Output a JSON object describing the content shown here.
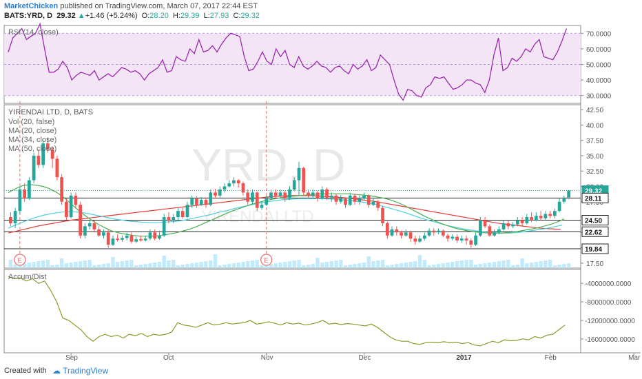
{
  "header": {
    "author": "MarketChicken",
    "published_text": "published on TradingView.com, March 07, 2017 22:44 EST",
    "symbol": "BATS:YRD, D",
    "last": "29.32",
    "change_arrow": "▲",
    "change": "+1.46 (+5.24%)",
    "o_label": "O:",
    "o": "28.20",
    "h_label": "H:",
    "h": "29.39",
    "l_label": "L:",
    "l": "27.93",
    "c_label": "C:",
    "c": "29.32"
  },
  "footer": {
    "created_with": "Created with",
    "brand": "TradingView"
  },
  "chart_data": {
    "type": "candlestick",
    "colors": {
      "up": "#26a69a",
      "down": "#ef5350",
      "rsi": "#9c27b0",
      "ma20": "#4caf50",
      "ma34": "#4dd0e1",
      "ma50": "#e53935",
      "accum": "#8a9a2a",
      "rsi_band": "#f3e5f5"
    },
    "watermark": {
      "symbol": "YRD, D",
      "name": "YIRENDAI LTD"
    },
    "rsi": {
      "label": "RSI (14, close)",
      "ticks": [
        "70.0000",
        "60.0000",
        "50.0000",
        "40.0000",
        "30.0000"
      ],
      "tick_values": [
        70,
        60,
        50,
        40,
        30
      ],
      "ylim": [
        25,
        75
      ],
      "band": [
        30,
        70
      ],
      "values": [
        58,
        67,
        70,
        73,
        66,
        68,
        70,
        76,
        60,
        45,
        45,
        47,
        52,
        48,
        40,
        43,
        45,
        44,
        43,
        46,
        40,
        42,
        44,
        42,
        45,
        48,
        47,
        45,
        46,
        44,
        40,
        44,
        46,
        48,
        53,
        45,
        46,
        55,
        53,
        52,
        60,
        57,
        66,
        58,
        59,
        62,
        58,
        63,
        67,
        70,
        69,
        68,
        55,
        46,
        47,
        52,
        58,
        52,
        50,
        60,
        55,
        59,
        50,
        48,
        55,
        49,
        47,
        49,
        52,
        49,
        48,
        45,
        48,
        49,
        46,
        44,
        50,
        47,
        49,
        53,
        46,
        48,
        56,
        53,
        50,
        40,
        31,
        27,
        34,
        33,
        30,
        29,
        35,
        37,
        42,
        41,
        42,
        38,
        34,
        35,
        37,
        40,
        40,
        38,
        37,
        32,
        40,
        56,
        67,
        46,
        48,
        54,
        52,
        55,
        60,
        58,
        63,
        66,
        55,
        54,
        53,
        58,
        65,
        73
      ]
    },
    "price": {
      "title": "YIRENDAI LTD, D, BATS",
      "legend": [
        "Vol (20, false)",
        "MA (20, close)",
        "MA (34, close)",
        "MA (50, close)"
      ],
      "ticks": [
        "42.50",
        "40.00",
        "37.50",
        "35.00",
        "32.50",
        "30.00",
        "27.50",
        "25.00",
        "22.50",
        "20.00",
        "17.50"
      ],
      "tick_values": [
        42.5,
        40,
        37.5,
        35,
        32.5,
        30,
        27.5,
        25,
        22.5,
        20,
        17.5
      ],
      "ylim": [
        16.7,
        43.3
      ],
      "hlines": [
        28.11,
        24.5,
        22.62,
        19.84
      ],
      "boxed_labels": [
        "29.32",
        "28.11",
        "24.50",
        "22.62",
        "19.84"
      ],
      "boxed_values": [
        29.32,
        28.11,
        24.5,
        22.62,
        19.84
      ],
      "events": [
        "E",
        "E"
      ],
      "event_index": [
        2,
        55
      ],
      "candles": [
        [
          25,
          24,
          25.8,
          23.5
        ],
        [
          24,
          26,
          26.5,
          23.2
        ],
        [
          26,
          29.5,
          30,
          25.5
        ],
        [
          29.5,
          28,
          30.5,
          27.5
        ],
        [
          28,
          31,
          31.5,
          27.8
        ],
        [
          31,
          35,
          35.5,
          30.5
        ],
        [
          35,
          33.5,
          36,
          33
        ],
        [
          33.5,
          37,
          37.5,
          33
        ],
        [
          37,
          36,
          38,
          35.5
        ],
        [
          36,
          34.5,
          36.5,
          33
        ],
        [
          34.5,
          31.5,
          35,
          31
        ],
        [
          31.5,
          27.5,
          32,
          27
        ],
        [
          27.5,
          25,
          28,
          24.5
        ],
        [
          25,
          28.5,
          29,
          24.8
        ],
        [
          28.5,
          27,
          29,
          26.5
        ],
        [
          27,
          22,
          27.5,
          21.5
        ],
        [
          22,
          23.5,
          24,
          21.5
        ],
        [
          23.5,
          24,
          24.5,
          23
        ],
        [
          24,
          23,
          24.5,
          22.5
        ],
        [
          23,
          22,
          23.5,
          21.8
        ],
        [
          22,
          22.5,
          23,
          21.5
        ],
        [
          22.5,
          20.5,
          23,
          20
        ],
        [
          20.5,
          21.5,
          22,
          20.3
        ],
        [
          21.5,
          21.3,
          22.2,
          21
        ],
        [
          21.3,
          21.6,
          22,
          21
        ],
        [
          21.6,
          22,
          22.5,
          21.2
        ],
        [
          22,
          21,
          22.5,
          20.7
        ],
        [
          21,
          21.4,
          21.8,
          20.8
        ],
        [
          21.4,
          21.2,
          22,
          21
        ],
        [
          21.2,
          21.5,
          22,
          21
        ],
        [
          21.5,
          22.5,
          23,
          21.2
        ],
        [
          22.5,
          21.5,
          23,
          21.2
        ],
        [
          21.5,
          22,
          22.8,
          21.3
        ],
        [
          22,
          25,
          25.5,
          21.8
        ],
        [
          25,
          24.5,
          25.8,
          24
        ],
        [
          24.5,
          25,
          25.5,
          24
        ],
        [
          25,
          26,
          26.5,
          24.5
        ],
        [
          26,
          25,
          26.5,
          24.7
        ],
        [
          25,
          27,
          27.5,
          24.8
        ],
        [
          27,
          28,
          28.5,
          26.5
        ],
        [
          28,
          27,
          28.4,
          26.5
        ],
        [
          27,
          27.8,
          28.3,
          26.8
        ],
        [
          27.8,
          27,
          28.2,
          26.5
        ],
        [
          27,
          29,
          29.5,
          26.8
        ],
        [
          29,
          28.5,
          29.6,
          28
        ],
        [
          28.5,
          29.5,
          30,
          28.2
        ],
        [
          29.5,
          30,
          30.5,
          29
        ],
        [
          30,
          30.5,
          31,
          29.8
        ],
        [
          30.5,
          31,
          31.5,
          30
        ],
        [
          31,
          30.5,
          31.2,
          29.8
        ],
        [
          30.5,
          29,
          30.8,
          28.5
        ],
        [
          29,
          27.5,
          29.5,
          27
        ],
        [
          27.5,
          29,
          29.5,
          27.2
        ],
        [
          29,
          26.5,
          29.2,
          26
        ],
        [
          26.5,
          27,
          27.5,
          26.2
        ],
        [
          27,
          28,
          28.5,
          26.8
        ],
        [
          28,
          29,
          29.5,
          27.8
        ],
        [
          29,
          28.5,
          29.5,
          28
        ],
        [
          28.5,
          29,
          29.5,
          28
        ],
        [
          29,
          28,
          29.3,
          27.5
        ],
        [
          28,
          29.5,
          30,
          27.8
        ],
        [
          29.5,
          31,
          31.5,
          29.2
        ],
        [
          31,
          33,
          34,
          28.5
        ],
        [
          33,
          29,
          33.2,
          28.5
        ],
        [
          29,
          28.5,
          29.5,
          28
        ],
        [
          28.5,
          29,
          29.5,
          28
        ],
        [
          29,
          28,
          29.3,
          27.5
        ],
        [
          28,
          29.5,
          30,
          27.8
        ],
        [
          29.5,
          28.2,
          29.8,
          27.8
        ],
        [
          28.2,
          28.5,
          29,
          27.5
        ],
        [
          28.5,
          27.5,
          28.8,
          27
        ],
        [
          27.5,
          28,
          28.6,
          27.2
        ],
        [
          28,
          27,
          28.3,
          26.5
        ],
        [
          27,
          28.5,
          29,
          26.8
        ],
        [
          28.5,
          27.5,
          28.8,
          27
        ],
        [
          27.5,
          28,
          28.5,
          27
        ],
        [
          28,
          28.5,
          29,
          27.8
        ],
        [
          28.5,
          27,
          28.7,
          26.5
        ],
        [
          27,
          27.5,
          28,
          26.8
        ],
        [
          27.5,
          26.5,
          27.8,
          26
        ],
        [
          26.5,
          24,
          26.8,
          23.5
        ],
        [
          24,
          22,
          24.3,
          21.5
        ],
        [
          22,
          23,
          23.5,
          21.8
        ],
        [
          23,
          22.5,
          23.5,
          22
        ],
        [
          22.5,
          22,
          22.8,
          21.5
        ],
        [
          22,
          22.5,
          23,
          21.8
        ],
        [
          22.5,
          21.5,
          22.8,
          21
        ],
        [
          21.5,
          21,
          22,
          20.5
        ],
        [
          21,
          21.5,
          22,
          20.8
        ],
        [
          21.5,
          22,
          22.5,
          21.2
        ],
        [
          22,
          22.8,
          23.2,
          21.8
        ],
        [
          22.8,
          22.5,
          23.2,
          22
        ],
        [
          22.5,
          22.8,
          23.2,
          22.2
        ],
        [
          22.8,
          22,
          23,
          21.7
        ],
        [
          22,
          21.5,
          22.3,
          21
        ],
        [
          21.5,
          21.8,
          22.2,
          21.2
        ],
        [
          21.8,
          21.2,
          22.2,
          20.8
        ],
        [
          21.2,
          21.5,
          22,
          20.8
        ],
        [
          21.5,
          21.2,
          22,
          20.5
        ],
        [
          21.2,
          20.5,
          21.5,
          20
        ],
        [
          20.5,
          22,
          22.5,
          20.3
        ],
        [
          22,
          24.5,
          25,
          21.8
        ],
        [
          24.5,
          23.5,
          25,
          23.2
        ],
        [
          23.5,
          22,
          23.8,
          21.8
        ],
        [
          22,
          22.5,
          23,
          21.8
        ],
        [
          22.5,
          23,
          23.5,
          22.2
        ],
        [
          23,
          24,
          24.5,
          22.8
        ],
        [
          24,
          23.5,
          24.4,
          23
        ],
        [
          23.5,
          23.8,
          24.2,
          23.2
        ],
        [
          23.8,
          24.5,
          25,
          23.5
        ],
        [
          24.5,
          24,
          25,
          23.6
        ],
        [
          24,
          25,
          25.5,
          23.8
        ],
        [
          25,
          24.5,
          25.8,
          24.2
        ],
        [
          24.5,
          25.2,
          25.8,
          24.3
        ],
        [
          25.2,
          24.8,
          26,
          24.5
        ],
        [
          24.8,
          25.5,
          26,
          24.5
        ],
        [
          25.5,
          25.2,
          26,
          24.8
        ],
        [
          25.2,
          26,
          26.4,
          24.8
        ],
        [
          26,
          27.5,
          28,
          25.8
        ],
        [
          27.5,
          28,
          28.5,
          27.2
        ],
        [
          28.2,
          29.32,
          29.39,
          27.93
        ]
      ],
      "ma20": [
        29,
        29.6,
        30.1,
        30.3,
        30.2,
        30,
        29.6,
        29,
        28.2,
        27.2,
        26.2,
        25.3,
        24.5,
        23.8,
        23.2,
        22.7,
        22.4,
        22.2,
        22,
        21.9,
        21.9,
        21.9,
        22,
        22.2,
        22.4,
        22.7,
        23,
        23.4,
        23.9,
        24.4,
        24.9,
        25.4,
        25.9,
        26.3,
        26.7,
        27.1,
        27.4,
        27.7,
        27.9,
        28.1,
        28.3,
        28.4,
        28.5,
        28.6,
        28.7,
        28.8,
        28.8,
        28.8,
        28.8,
        28.8,
        28.7,
        28.6,
        28.5,
        28.3,
        28.1,
        27.8,
        27.4,
        26.9,
        26.3,
        25.7,
        25.1,
        24.6,
        24.1,
        23.7,
        23.3,
        23,
        22.8,
        22.6,
        22.5,
        22.4,
        22.4,
        22.4,
        22.5,
        22.6,
        22.8,
        23,
        23.2,
        23.5,
        23.8,
        24.2,
        24.7
      ],
      "ma34": [
        23.2,
        23.8,
        24.4,
        24.9,
        25.3,
        25.6,
        25.8,
        25.9,
        25.8,
        25.6,
        25.3,
        25,
        24.7,
        24.5,
        24.3,
        24.2,
        24.1,
        24.1,
        24.2,
        24.3,
        24.5,
        24.8,
        25.1,
        25.4,
        25.8,
        26.1,
        26.5,
        26.8,
        27.1,
        27.4,
        27.6,
        27.8,
        27.9,
        28,
        28,
        28,
        28,
        27.9,
        27.8,
        27.7,
        27.5,
        27.3,
        27,
        26.6,
        26.2,
        25.8,
        25.3,
        24.8,
        24.4,
        24,
        23.6,
        23.3,
        23,
        22.8,
        22.6,
        22.5,
        22.4,
        22.4,
        22.5,
        22.7,
        22.9,
        23.1,
        23.4,
        23.7
      ],
      "ma50": [
        22.4,
        22.8,
        23.2,
        23.6,
        23.9,
        24.2,
        24.5,
        24.7,
        24.9,
        25.1,
        25.3,
        25.5,
        25.7,
        25.9,
        26.1,
        26.3,
        26.5,
        26.7,
        26.9,
        27.1,
        27.3,
        27.5,
        27.7,
        27.9,
        28.1,
        28.3,
        28.4,
        28.5,
        28.5,
        28.5,
        28.4,
        28.3,
        28.2,
        28,
        27.8,
        27.6,
        27.3,
        27,
        26.7,
        26.4,
        26.1,
        25.8,
        25.5,
        25.2,
        24.9,
        24.6,
        24.3,
        24,
        23.8,
        23.6,
        23.4,
        23.2,
        23.1,
        23
      ],
      "volume_hint": "relative volume bars at bottom of price pane"
    },
    "accum": {
      "label": "Accum/Dist",
      "ticks": [
        "-4000000.0000",
        "-8000000.0000",
        "-12000000.0000",
        "-16000000.0000"
      ],
      "tick_values": [
        -4000000,
        -8000000,
        -12000000,
        -16000000
      ],
      "ylim": [
        -19000000,
        -1000000
      ],
      "values": [
        -2500000,
        -3000000,
        -2800000,
        -3500000,
        -3000000,
        -4000000,
        -3500000,
        -5500000,
        -8000000,
        -11500000,
        -12000000,
        -13000000,
        -14000000,
        -15500000,
        -16500000,
        -15500000,
        -15000000,
        -15500000,
        -15200000,
        -15800000,
        -15000000,
        -15300000,
        -14800000,
        -15500000,
        -15000000,
        -15200000,
        -15000000,
        -14500000,
        -12500000,
        -13000000,
        -13200000,
        -13500000,
        -13000000,
        -12500000,
        -13000000,
        -12800000,
        -12500000,
        -12800000,
        -12600000,
        -12500000,
        -12000000,
        -12800000,
        -12600000,
        -12300000,
        -12600000,
        -13000000,
        -12500000,
        -12800000,
        -12600000,
        -13000000,
        -12800000,
        -12500000,
        -12000000,
        -12800000,
        -12600000,
        -12900000,
        -12700000,
        -12800000,
        -13000000,
        -13200000,
        -12800000,
        -13500000,
        -14500000,
        -15500000,
        -16200000,
        -16500000,
        -16500000,
        -17000000,
        -17200000,
        -16800000,
        -16700000,
        -16800000,
        -16600000,
        -16800000,
        -16700000,
        -17000000,
        -16800000,
        -17300000,
        -17500000,
        -17000000,
        -16500000,
        -16800000,
        -16200000,
        -16400000,
        -16300000,
        -16000000,
        -16200000,
        -15500000,
        -15800000,
        -15200000,
        -15000000,
        -14000000,
        -13000000
      ]
    },
    "x_ticks": [
      "Sep",
      "Oct",
      "Nov",
      "Dec",
      "2017",
      "Feb",
      "Mar"
    ],
    "x_tick_index": [
      13,
      34,
      55,
      76,
      97,
      116,
      134
    ]
  }
}
